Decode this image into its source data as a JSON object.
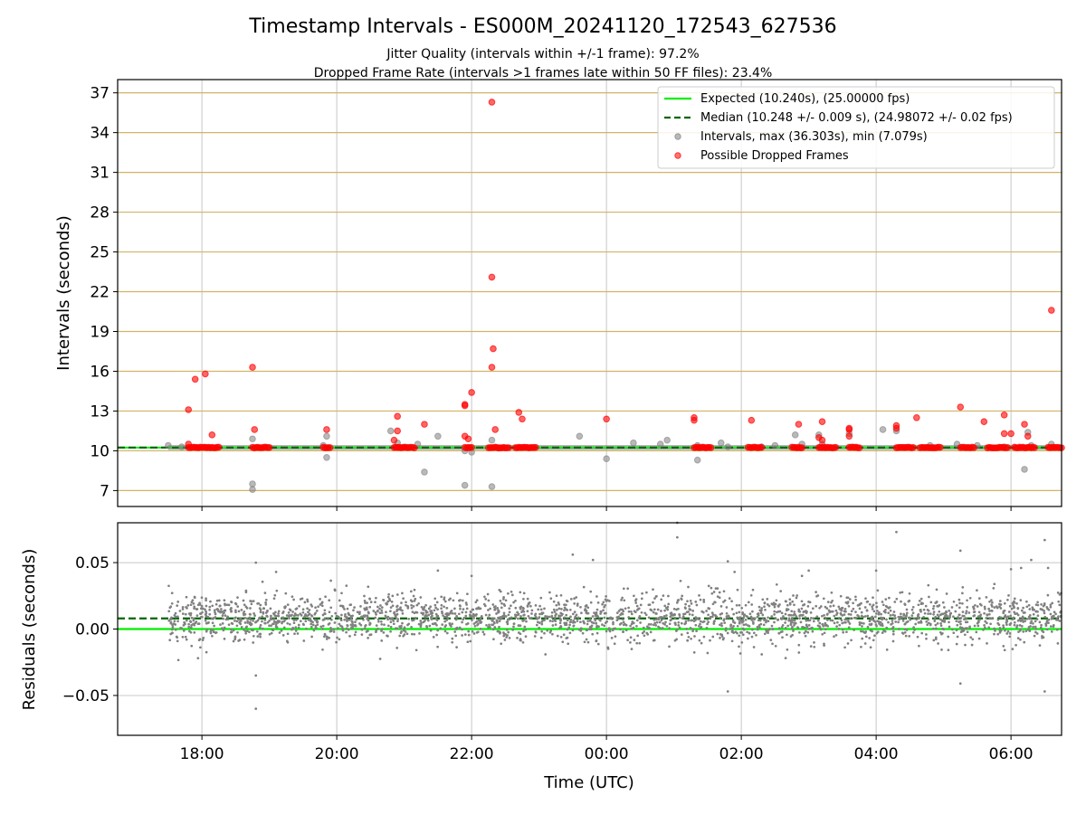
{
  "chart_data": [
    {
      "type": "scatter",
      "panel": "intervals",
      "title": "Timestamp Intervals - ES000M_20241120_172543_627536",
      "subtitle_lines": [
        "Jitter Quality (intervals within +/-1 frame): 97.2%",
        "Dropped Frame Rate (intervals >1 frames late within 50 FF files): 23.4%"
      ],
      "ylabel": "Intervals (seconds)",
      "ylim": [
        5.8,
        38.0
      ],
      "yticks": [
        7,
        10,
        13,
        16,
        19,
        22,
        25,
        28,
        31,
        34,
        37
      ],
      "ytick_labels": [
        "7",
        "10",
        "13",
        "16",
        "19",
        "22",
        "25",
        "28",
        "31",
        "34",
        "37"
      ],
      "xlim_hours": [
        16.75,
        30.75
      ],
      "grid": true,
      "legend_position": "top-right",
      "legend": [
        "Expected (10.240s), (25.00000 fps)",
        "Median (10.248 +/- 0.009 s), (24.98072 +/- 0.02 fps)",
        "Intervals, max (36.303s), min (7.079s)",
        "Possible Dropped Frames"
      ],
      "expected_line": 10.24,
      "median_line": 10.248,
      "band_start_hour": 17.5,
      "gray_outliers": [
        [
          17.5,
          10.4
        ],
        [
          17.7,
          10.3
        ],
        [
          18.75,
          10.9
        ],
        [
          18.75,
          7.5
        ],
        [
          18.75,
          7.08
        ],
        [
          19.8,
          10.4
        ],
        [
          19.85,
          11.1
        ],
        [
          19.85,
          9.5
        ],
        [
          20.8,
          11.5
        ],
        [
          20.9,
          10.6
        ],
        [
          21.2,
          10.5
        ],
        [
          21.3,
          8.4
        ],
        [
          21.5,
          11.1
        ],
        [
          21.9,
          10.0
        ],
        [
          21.9,
          7.4
        ],
        [
          22.0,
          9.9
        ],
        [
          22.3,
          10.8
        ],
        [
          22.3,
          7.3
        ],
        [
          22.4,
          10.2
        ],
        [
          23.6,
          11.1
        ],
        [
          24.0,
          9.4
        ],
        [
          24.4,
          10.6
        ],
        [
          24.8,
          10.5
        ],
        [
          24.9,
          10.8
        ],
        [
          25.35,
          9.3
        ],
        [
          25.35,
          10.4
        ],
        [
          25.7,
          10.6
        ],
        [
          25.8,
          10.3
        ],
        [
          26.3,
          10.3
        ],
        [
          26.5,
          10.4
        ],
        [
          26.8,
          11.2
        ],
        [
          26.9,
          10.5
        ],
        [
          27.15,
          11.2
        ],
        [
          27.2,
          10.5
        ],
        [
          27.6,
          11.3
        ],
        [
          28.1,
          11.6
        ],
        [
          28.3,
          11.5
        ],
        [
          28.8,
          10.4
        ],
        [
          29.2,
          10.5
        ],
        [
          29.5,
          10.4
        ],
        [
          29.9,
          10.3
        ],
        [
          30.2,
          8.6
        ],
        [
          30.25,
          11.4
        ],
        [
          30.3,
          10.4
        ],
        [
          30.6,
          10.5
        ]
      ],
      "red_points": [
        [
          17.8,
          13.1
        ],
        [
          17.8,
          10.5
        ],
        [
          17.9,
          15.4
        ],
        [
          18.05,
          15.8
        ],
        [
          18.15,
          11.2
        ],
        [
          18.75,
          16.3
        ],
        [
          18.78,
          11.6
        ],
        [
          19.85,
          11.6
        ],
        [
          20.85,
          10.8
        ],
        [
          20.9,
          11.5
        ],
        [
          20.9,
          12.6
        ],
        [
          21.3,
          12.0
        ],
        [
          21.9,
          13.5
        ],
        [
          21.9,
          13.4
        ],
        [
          21.9,
          11.1
        ],
        [
          21.95,
          10.9
        ],
        [
          22.0,
          14.4
        ],
        [
          22.3,
          23.1
        ],
        [
          22.3,
          36.3
        ],
        [
          22.32,
          17.7
        ],
        [
          22.3,
          16.3
        ],
        [
          22.35,
          11.6
        ],
        [
          22.7,
          12.9
        ],
        [
          22.75,
          12.4
        ],
        [
          24.0,
          12.4
        ],
        [
          25.3,
          12.5
        ],
        [
          25.3,
          12.3
        ],
        [
          26.15,
          12.3
        ],
        [
          26.85,
          12.0
        ],
        [
          27.15,
          11.0
        ],
        [
          27.2,
          12.2
        ],
        [
          27.2,
          10.8
        ],
        [
          27.6,
          11.7
        ],
        [
          27.6,
          11.6
        ],
        [
          27.6,
          11.1
        ],
        [
          28.3,
          11.9
        ],
        [
          28.3,
          11.7
        ],
        [
          28.6,
          12.5
        ],
        [
          29.25,
          13.3
        ],
        [
          29.6,
          12.2
        ],
        [
          29.9,
          12.7
        ],
        [
          29.9,
          11.3
        ],
        [
          30.0,
          11.3
        ],
        [
          30.2,
          12.0
        ],
        [
          30.25,
          11.1
        ],
        [
          30.6,
          20.6
        ]
      ],
      "red_clusters_at_median": [
        [
          17.8,
          18.25
        ],
        [
          18.75,
          19.0
        ],
        [
          19.8,
          19.9
        ],
        [
          20.85,
          21.15
        ],
        [
          21.9,
          22.0
        ],
        [
          22.25,
          22.55
        ],
        [
          22.65,
          22.95
        ],
        [
          25.3,
          25.55
        ],
        [
          26.1,
          26.3
        ],
        [
          26.75,
          26.9
        ],
        [
          27.15,
          27.4
        ],
        [
          27.6,
          27.75
        ],
        [
          28.3,
          28.55
        ],
        [
          28.65,
          28.95
        ],
        [
          29.25,
          29.45
        ],
        [
          29.65,
          29.95
        ],
        [
          30.05,
          30.35
        ],
        [
          30.55,
          30.75
        ]
      ]
    },
    {
      "type": "scatter",
      "panel": "residuals",
      "ylabel": "Residuals (seconds)",
      "xlabel": "Time (UTC)",
      "ylim": [
        -0.08,
        0.08
      ],
      "yticks": [
        -0.05,
        0.0,
        0.05
      ],
      "ytick_labels": [
        "−0.05",
        "0.00",
        "0.05"
      ],
      "xlim_hours": [
        16.75,
        30.75
      ],
      "xticks_hours": [
        18,
        20,
        22,
        24,
        26,
        28,
        30
      ],
      "xtick_labels": [
        "18:00",
        "20:00",
        "22:00",
        "00:00",
        "02:00",
        "04:00",
        "06:00"
      ],
      "grid": true,
      "zero_line": 0.0,
      "median_line": 0.008,
      "residual_start_hour": 17.5,
      "residual_outliers": [
        [
          18.8,
          0.05
        ],
        [
          18.8,
          -0.035
        ],
        [
          18.8,
          -0.06
        ],
        [
          19.1,
          0.043
        ],
        [
          21.5,
          0.044
        ],
        [
          23.5,
          0.056
        ],
        [
          23.8,
          0.052
        ],
        [
          25.05,
          0.08
        ],
        [
          25.05,
          0.069
        ],
        [
          25.8,
          0.051
        ],
        [
          25.8,
          -0.047
        ],
        [
          25.9,
          0.043
        ],
        [
          27.0,
          0.044
        ],
        [
          28.0,
          0.044
        ],
        [
          28.3,
          0.073
        ],
        [
          29.25,
          0.059
        ],
        [
          29.25,
          -0.041
        ],
        [
          30.0,
          0.045
        ],
        [
          30.15,
          0.046
        ],
        [
          30.3,
          0.052
        ],
        [
          30.5,
          0.067
        ],
        [
          30.5,
          -0.047
        ],
        [
          30.55,
          0.046
        ],
        [
          22.0,
          0.04
        ],
        [
          26.9,
          0.04
        ]
      ]
    }
  ],
  "colors": {
    "expected": "#00ee00",
    "median": "#006400",
    "intervals": "#808080",
    "dropped": "#ff0000",
    "hgrid_top": "#d2b467",
    "grid": "#b0b0b0"
  }
}
